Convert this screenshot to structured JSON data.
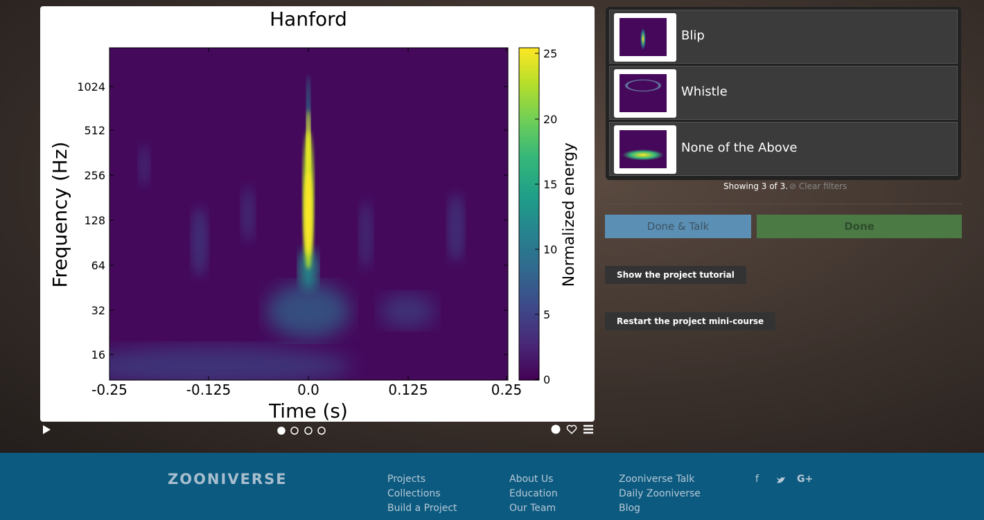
{
  "viewer": {
    "title": "Hanford",
    "y_label": "Frequency (Hz)",
    "x_label": "Time (s)",
    "colorbar_label": "Normalized energy",
    "y_ticks": [
      "1024",
      "512",
      "256",
      "128",
      "64",
      "32",
      "16"
    ],
    "x_ticks": [
      "-0.25",
      "-0.125",
      "0.0",
      "0.125",
      "0.25"
    ],
    "colorbar_ticks": [
      "25",
      "20",
      "15",
      "10",
      "5",
      "0"
    ]
  },
  "choices": [
    {
      "label": "Blip"
    },
    {
      "label": "Whistle"
    },
    {
      "label": "None of the Above"
    }
  ],
  "filter_status": "Showing 3 of 3.",
  "clear_filters": "Clear filters",
  "buttons": {
    "done_talk": "Done & Talk",
    "done": "Done",
    "tutorial": "Show the project tutorial",
    "minicourse": "Restart the project mini-course"
  },
  "footer": {
    "logo": "ZOONIVERSE",
    "columns": [
      [
        "Projects",
        "Collections",
        "Build a Project"
      ],
      [
        "About Us",
        "Education",
        "Our Team"
      ],
      [
        "Zooniverse Talk",
        "Daily Zooniverse",
        "Blog"
      ]
    ],
    "social": [
      "f",
      "G+"
    ]
  }
}
